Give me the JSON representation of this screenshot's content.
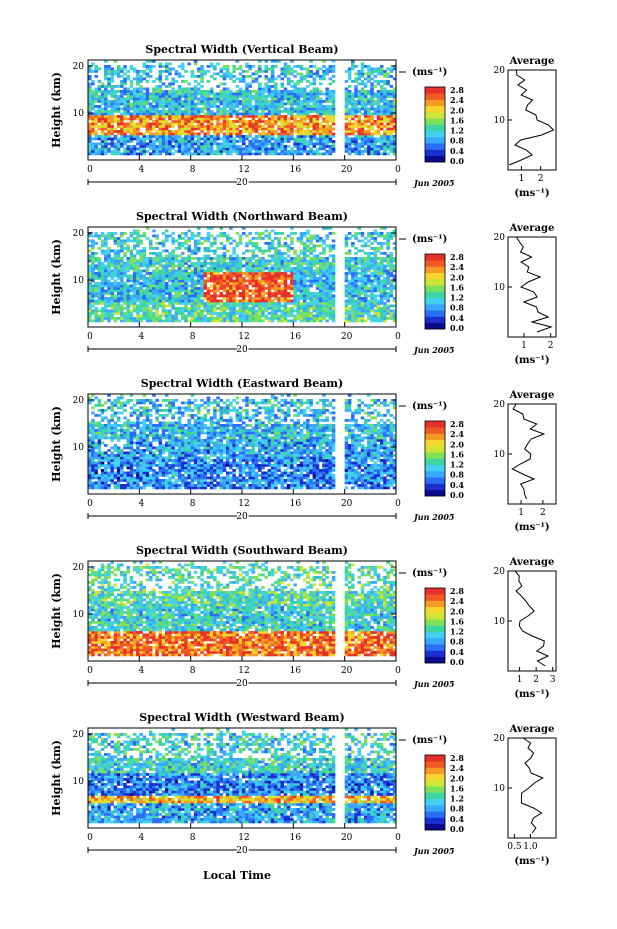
{
  "figure": {
    "xlabel": "Local Time"
  },
  "colorbar": {
    "unit": "(ms⁻¹)",
    "labels": [
      "2.8",
      "2.4",
      "2.0",
      "1.6",
      "1.2",
      "0.8",
      "0.4",
      "0.0"
    ],
    "colors": [
      "#0a0a8c",
      "#1a2fd0",
      "#2a6ef5",
      "#3aa7ff",
      "#43d1f0",
      "#3cd6a0",
      "#7de05a",
      "#cde636",
      "#f5d72c",
      "#f59a24",
      "#ef5a25",
      "#e8302a"
    ]
  },
  "chart_data": [
    {
      "type": "heatmap",
      "title": "Spectral Width (Vertical Beam)",
      "ylabel": "Height (km)",
      "yticks": [
        "20",
        "10"
      ],
      "xticks": [
        "0",
        "4",
        "8",
        "12",
        "16",
        "20",
        "0"
      ],
      "date_label": "20",
      "date_suffix": "Jun 2005",
      "ylim": [
        0,
        20
      ],
      "xlim": [
        0,
        24
      ],
      "gap_hours": [
        19.2,
        19.6
      ],
      "profile": [
        [
          0.4,
          1.0
        ],
        [
          1.0,
          2.0
        ],
        [
          1.5,
          3.0
        ],
        [
          1.2,
          4.0
        ],
        [
          0.5,
          5.0
        ],
        [
          0.9,
          6.0
        ],
        [
          1.9,
          7.0
        ],
        [
          2.6,
          8.0
        ],
        [
          2.3,
          9.0
        ],
        [
          2.0,
          10.0
        ],
        [
          1.6,
          11.0
        ],
        [
          1.4,
          12.0
        ],
        [
          1.2,
          13.0
        ],
        [
          1.5,
          14.0
        ],
        [
          1.0,
          15.0
        ],
        [
          1.4,
          16.0
        ],
        [
          0.8,
          17.0
        ],
        [
          1.0,
          18.0
        ],
        [
          0.7,
          19.0
        ],
        [
          0.9,
          20.0
        ]
      ],
      "profile_title": "Average",
      "profile_xticks": [
        "1",
        "2"
      ],
      "profile_xlim": [
        0.3,
        2.8
      ],
      "profile_unit": "(ms⁻¹)"
    },
    {
      "type": "heatmap",
      "title": "Spectral Width (Northward Beam)",
      "ylabel": "Height (km)",
      "yticks": [
        "20",
        "10"
      ],
      "xticks": [
        "0",
        "4",
        "8",
        "12",
        "16",
        "20",
        "0"
      ],
      "date_label": "20",
      "date_suffix": "Jun 2005",
      "ylim": [
        0,
        20
      ],
      "xlim": [
        0,
        24
      ],
      "gap_hours": [
        19.2,
        19.6
      ],
      "profile": [
        [
          1.6,
          1.0
        ],
        [
          1.9,
          2.0
        ],
        [
          1.3,
          3.0
        ],
        [
          1.9,
          4.0
        ],
        [
          1.4,
          5.0
        ],
        [
          1.5,
          6.0
        ],
        [
          0.9,
          7.0
        ],
        [
          1.6,
          8.0
        ],
        [
          1.3,
          9.0
        ],
        [
          0.8,
          10.0
        ],
        [
          1.2,
          11.0
        ],
        [
          1.6,
          12.0
        ],
        [
          1.1,
          13.0
        ],
        [
          1.3,
          14.0
        ],
        [
          1.0,
          15.0
        ],
        [
          1.2,
          16.0
        ],
        [
          0.8,
          17.0
        ],
        [
          1.0,
          18.0
        ],
        [
          0.7,
          19.0
        ],
        [
          0.8,
          20.0
        ]
      ],
      "profile_title": "Average",
      "profile_xticks": [
        "1",
        "2"
      ],
      "profile_xlim": [
        0.4,
        2.2
      ],
      "profile_unit": "(ms⁻¹)"
    },
    {
      "type": "heatmap",
      "title": "Spectral Width (Eastward Beam)",
      "ylabel": "Height (km)",
      "yticks": [
        "20",
        "10"
      ],
      "xticks": [
        "0",
        "4",
        "8",
        "12",
        "16",
        "20",
        "0"
      ],
      "date_label": "20",
      "date_suffix": "Jun 2005",
      "ylim": [
        0,
        20
      ],
      "xlim": [
        0,
        24
      ],
      "gap_hours": [
        19.2,
        19.6
      ],
      "profile": [
        [
          1.4,
          1.0
        ],
        [
          1.0,
          2.0
        ],
        [
          1.2,
          3.0
        ],
        [
          0.9,
          4.0
        ],
        [
          1.6,
          5.0
        ],
        [
          1.1,
          6.0
        ],
        [
          0.6,
          7.0
        ],
        [
          1.0,
          8.0
        ],
        [
          1.4,
          9.0
        ],
        [
          1.3,
          10.0
        ],
        [
          1.1,
          11.0
        ],
        [
          1.4,
          12.0
        ],
        [
          1.5,
          13.0
        ],
        [
          1.9,
          14.0
        ],
        [
          1.3,
          15.0
        ],
        [
          1.6,
          16.0
        ],
        [
          1.2,
          17.0
        ],
        [
          1.0,
          18.0
        ],
        [
          0.8,
          19.0
        ],
        [
          0.7,
          20.0
        ]
      ],
      "profile_title": "Average",
      "profile_xticks": [
        "1",
        "2"
      ],
      "profile_xlim": [
        0.4,
        2.6
      ],
      "profile_unit": "(ms⁻¹)"
    },
    {
      "type": "heatmap",
      "title": "Spectral Width (Southward Beam)",
      "ylabel": "Height (km)",
      "yticks": [
        "20",
        "10"
      ],
      "xticks": [
        "0",
        "4",
        "8",
        "12",
        "16",
        "20",
        "0"
      ],
      "date_label": "20",
      "date_suffix": "Jun 2005",
      "ylim": [
        0,
        20
      ],
      "xlim": [
        0,
        24
      ],
      "gap_hours": [
        19.2,
        19.6
      ],
      "profile": [
        [
          2.6,
          1.0
        ],
        [
          2.2,
          2.0
        ],
        [
          2.8,
          3.0
        ],
        [
          2.1,
          4.0
        ],
        [
          2.6,
          5.0
        ],
        [
          2.4,
          6.0
        ],
        [
          1.6,
          7.0
        ],
        [
          1.2,
          8.0
        ],
        [
          1.0,
          9.0
        ],
        [
          1.2,
          10.0
        ],
        [
          1.6,
          11.0
        ],
        [
          2.0,
          12.0
        ],
        [
          1.7,
          13.0
        ],
        [
          1.5,
          14.0
        ],
        [
          1.3,
          15.0
        ],
        [
          1.0,
          16.0
        ],
        [
          1.1,
          17.0
        ],
        [
          0.9,
          18.0
        ],
        [
          0.8,
          19.0
        ],
        [
          0.7,
          20.0
        ]
      ],
      "profile_title": "Average",
      "profile_xticks": [
        "1",
        "2",
        "3"
      ],
      "profile_xlim": [
        0.3,
        3.2
      ],
      "profile_unit": "(ms⁻¹)"
    },
    {
      "type": "heatmap",
      "title": "Spectral Width (Westward Beam)",
      "ylabel": "Height (km)",
      "yticks": [
        "20",
        "10"
      ],
      "xticks": [
        "0",
        "4",
        "8",
        "12",
        "16",
        "20",
        "0"
      ],
      "date_label": "20",
      "date_suffix": "Jun 2005",
      "ylim": [
        0,
        20
      ],
      "xlim": [
        0,
        24
      ],
      "gap_hours": [
        19.2,
        19.6
      ],
      "profile": [
        [
          1.0,
          1.0
        ],
        [
          1.2,
          2.0
        ],
        [
          1.0,
          3.0
        ],
        [
          1.1,
          4.0
        ],
        [
          1.4,
          5.0
        ],
        [
          1.1,
          6.0
        ],
        [
          0.8,
          7.0
        ],
        [
          0.7,
          8.0
        ],
        [
          0.8,
          9.0
        ],
        [
          1.0,
          10.0
        ],
        [
          1.2,
          11.0
        ],
        [
          1.4,
          12.0
        ],
        [
          1.1,
          13.0
        ],
        [
          1.0,
          14.0
        ],
        [
          0.9,
          15.0
        ],
        [
          1.0,
          16.0
        ],
        [
          1.2,
          17.0
        ],
        [
          1.0,
          18.0
        ],
        [
          0.9,
          19.0
        ],
        [
          0.8,
          20.0
        ]
      ],
      "profile_title": "Average",
      "profile_xticks": [
        "0.5",
        "1.0"
      ],
      "profile_xlim": [
        0.3,
        1.8
      ],
      "profile_unit": "(ms⁻¹)"
    }
  ]
}
